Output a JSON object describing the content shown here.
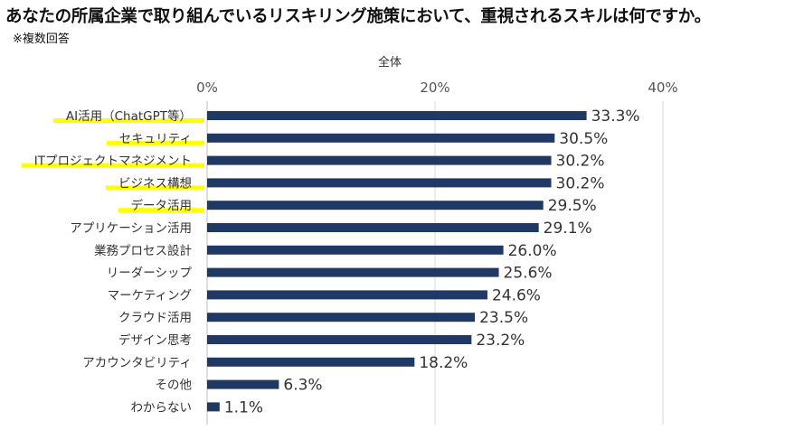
{
  "title": "あなたの所属企業で取り組んでいるリスキリング施策において、重視されるスキルは何ですか。",
  "note": "※複数回答",
  "chart_data": {
    "type": "bar",
    "orientation": "horizontal",
    "subtitle": "全体",
    "categories": [
      "AI活用（ChatGPT等）",
      "セキュリティ",
      "ITプロジェクトマネジメント",
      "ビジネス構想",
      "データ活用",
      "アプリケーション活用",
      "業務プロセス設計",
      "リーダーシップ",
      "マーケティング",
      "クラウド活用",
      "デザイン思考",
      "アカウンタビリティ",
      "その他",
      "わからない"
    ],
    "values": [
      33.3,
      30.5,
      30.2,
      30.2,
      29.5,
      29.1,
      26.0,
      25.6,
      24.6,
      23.5,
      23.2,
      18.2,
      6.3,
      1.1
    ],
    "value_labels": [
      "33.3%",
      "30.5%",
      "30.2%",
      "30.2%",
      "29.5%",
      "29.1%",
      "26.0%",
      "25.6%",
      "24.6%",
      "23.5%",
      "23.2%",
      "18.2%",
      "6.3%",
      "1.1%"
    ],
    "highlighted": [
      "AI活用（ChatGPT等）",
      "セキュリティ",
      "ITプロジェクトマネジメント",
      "ビジネス構想",
      "データ活用"
    ],
    "xlim": [
      0,
      40
    ],
    "ticks": [
      0,
      20,
      40
    ],
    "tick_labels": [
      "0%",
      "20%",
      "40%"
    ],
    "grid": true,
    "bar_color": "#1f3864",
    "highlight_color": "#ffff00"
  }
}
